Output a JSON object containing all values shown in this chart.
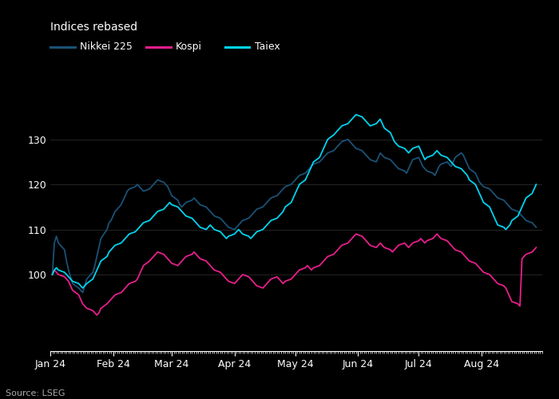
{
  "title": "Indices rebased",
  "source": "Source: LSEG",
  "legend": [
    "Nikkei 225",
    "Kospi",
    "Taiex"
  ],
  "colors": {
    "nikkei": "#1a5276",
    "kospi": "#e91e8c",
    "taiex": "#00d4f0"
  },
  "ylim": [
    83,
    145
  ],
  "yticks": [
    100,
    110,
    120,
    130
  ],
  "background": "#000000",
  "text_color": "#ffffff",
  "grid_color": "#2a2a2a",
  "line_width": 1.3,
  "nikkei": [
    100.0,
    107.0,
    108.5,
    107.0,
    105.5,
    103.0,
    101.0,
    99.5,
    98.0,
    97.0,
    96.5,
    96.0,
    97.5,
    99.0,
    100.5,
    102.0,
    104.0,
    106.0,
    108.0,
    110.0,
    111.5,
    112.0,
    113.0,
    114.0,
    115.5,
    116.5,
    117.5,
    118.5,
    119.0,
    119.5,
    120.0,
    119.5,
    119.0,
    118.5,
    119.0,
    119.5,
    120.0,
    120.5,
    121.0,
    120.5,
    120.0,
    119.5,
    118.5,
    117.5,
    116.5,
    115.5,
    115.0,
    115.5,
    116.0,
    116.5,
    117.0,
    116.5,
    116.0,
    115.5,
    115.0,
    114.5,
    114.0,
    113.5,
    113.0,
    112.5,
    112.0,
    111.5,
    111.0,
    110.5,
    110.0,
    110.5,
    111.0,
    111.5,
    112.0,
    112.5,
    113.0,
    113.5,
    114.0,
    114.5,
    115.0,
    115.5,
    116.0,
    116.5,
    117.0,
    117.5,
    118.0,
    118.5,
    119.0,
    119.5,
    120.0,
    120.5,
    121.0,
    121.5,
    122.0,
    122.5,
    123.0,
    123.5,
    124.0,
    124.5,
    125.0,
    125.5,
    126.0,
    126.5,
    127.0,
    127.5,
    128.0,
    128.5,
    129.0,
    129.5,
    130.0,
    129.5,
    129.0,
    128.5,
    128.0,
    127.5,
    127.0,
    126.5,
    126.0,
    125.5,
    125.0,
    126.0,
    127.0,
    126.5,
    126.0,
    125.5,
    125.0,
    124.5,
    124.0,
    123.5,
    123.0,
    122.5,
    123.5,
    124.5,
    125.5,
    126.0,
    125.0,
    124.0,
    123.5,
    123.0,
    122.5,
    122.0,
    123.0,
    124.0,
    124.5,
    125.0,
    124.5,
    124.0,
    125.0,
    126.0,
    127.0,
    126.5,
    125.5,
    124.5,
    123.5,
    122.5,
    121.5,
    120.5,
    120.0,
    119.5,
    119.0,
    118.5,
    118.0,
    117.5,
    117.0,
    116.5,
    116.0,
    115.5,
    115.0,
    114.5,
    114.0,
    113.5,
    113.0,
    112.5,
    112.0,
    111.5,
    111.0,
    110.5
  ],
  "kospi": [
    100.0,
    101.0,
    100.5,
    100.0,
    99.5,
    99.0,
    98.5,
    97.5,
    96.5,
    95.5,
    94.5,
    93.5,
    93.0,
    92.5,
    92.0,
    91.5,
    91.0,
    91.5,
    92.5,
    93.5,
    94.0,
    94.5,
    95.0,
    95.5,
    96.0,
    96.5,
    97.0,
    97.5,
    98.0,
    98.5,
    99.0,
    100.0,
    101.0,
    102.0,
    103.0,
    103.5,
    104.0,
    104.5,
    105.0,
    104.5,
    104.0,
    103.5,
    103.0,
    102.5,
    102.0,
    102.5,
    103.0,
    103.5,
    104.0,
    104.5,
    105.0,
    104.5,
    104.0,
    103.5,
    103.0,
    102.5,
    102.0,
    101.5,
    101.0,
    100.5,
    100.0,
    99.5,
    99.0,
    98.5,
    98.0,
    98.5,
    99.0,
    99.5,
    100.0,
    99.5,
    99.0,
    98.5,
    98.0,
    97.5,
    97.0,
    97.5,
    98.0,
    98.5,
    99.0,
    99.5,
    99.0,
    98.5,
    98.0,
    98.5,
    99.0,
    99.5,
    100.0,
    100.5,
    101.0,
    101.5,
    102.0,
    101.5,
    101.0,
    101.5,
    102.0,
    102.5,
    103.0,
    103.5,
    104.0,
    104.5,
    105.0,
    105.5,
    106.0,
    106.5,
    107.0,
    107.5,
    108.0,
    108.5,
    109.0,
    108.5,
    108.0,
    107.5,
    107.0,
    106.5,
    106.0,
    106.5,
    107.0,
    106.5,
    106.0,
    105.5,
    105.0,
    105.5,
    106.0,
    106.5,
    107.0,
    106.5,
    106.0,
    106.5,
    107.0,
    107.5,
    108.0,
    107.5,
    107.0,
    107.5,
    108.0,
    108.5,
    109.0,
    108.5,
    108.0,
    107.5,
    107.0,
    106.5,
    106.0,
    105.5,
    105.0,
    104.5,
    104.0,
    103.5,
    103.0,
    102.5,
    102.0,
    101.5,
    101.0,
    100.5,
    100.0,
    99.5,
    99.0,
    98.5,
    98.0,
    97.5,
    97.0,
    96.0,
    95.0,
    94.0,
    93.5,
    93.0,
    103.5,
    104.0,
    104.5,
    105.0,
    105.5,
    106.0
  ],
  "taiex": [
    100.0,
    101.0,
    101.5,
    101.0,
    100.5,
    100.0,
    99.5,
    99.0,
    98.5,
    98.0,
    97.5,
    97.0,
    97.5,
    98.0,
    99.0,
    100.0,
    101.0,
    102.0,
    103.0,
    104.0,
    105.0,
    105.5,
    106.0,
    106.5,
    107.0,
    107.5,
    108.0,
    108.5,
    109.0,
    109.5,
    110.0,
    110.5,
    111.0,
    111.5,
    112.0,
    112.5,
    113.0,
    113.5,
    114.0,
    114.5,
    115.0,
    115.5,
    116.0,
    115.5,
    115.0,
    114.5,
    114.0,
    113.5,
    113.0,
    112.5,
    112.0,
    111.5,
    111.0,
    110.5,
    110.0,
    110.5,
    111.0,
    110.5,
    110.0,
    109.5,
    109.0,
    108.5,
    108.0,
    108.5,
    109.0,
    109.5,
    110.0,
    109.5,
    109.0,
    108.5,
    108.0,
    108.5,
    109.0,
    109.5,
    110.0,
    110.5,
    111.0,
    111.5,
    112.0,
    112.5,
    113.0,
    113.5,
    114.0,
    115.0,
    116.0,
    117.0,
    118.0,
    119.0,
    120.0,
    121.0,
    122.0,
    123.0,
    124.0,
    125.0,
    126.0,
    127.0,
    128.0,
    129.0,
    130.0,
    131.0,
    131.5,
    132.0,
    132.5,
    133.0,
    133.5,
    134.0,
    134.5,
    135.0,
    135.5,
    135.0,
    134.5,
    134.0,
    133.5,
    133.0,
    133.5,
    134.0,
    134.5,
    133.5,
    132.5,
    131.5,
    130.5,
    129.5,
    129.0,
    128.5,
    128.0,
    127.5,
    127.0,
    127.5,
    128.0,
    128.5,
    127.5,
    126.5,
    125.5,
    126.0,
    126.5,
    127.0,
    127.5,
    127.0,
    126.5,
    126.0,
    125.5,
    125.0,
    124.5,
    124.0,
    123.5,
    123.0,
    122.5,
    122.0,
    121.0,
    120.0,
    119.0,
    118.0,
    117.0,
    116.0,
    115.0,
    114.0,
    113.0,
    112.0,
    111.0,
    110.5,
    110.0,
    110.5,
    111.0,
    112.0,
    113.0,
    114.0,
    115.0,
    116.0,
    117.0,
    118.0,
    119.0,
    120.0
  ]
}
